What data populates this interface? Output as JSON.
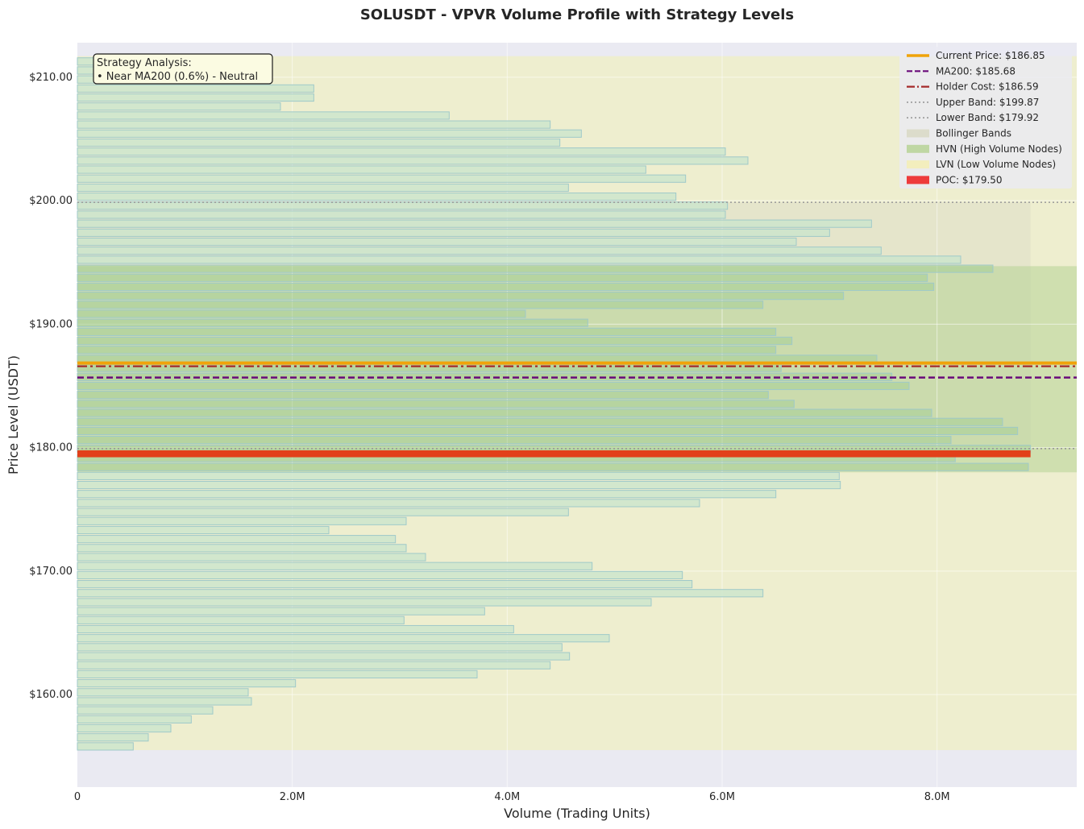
{
  "chart_data": {
    "type": "bar",
    "orientation": "horizontal",
    "title": "SOLUSDT - VPVR Volume Profile with Strategy Levels",
    "xlabel": "Volume (Trading Units)",
    "ylabel": "Price Level (USDT)",
    "xlim": [
      0,
      9300000
    ],
    "ylim": [
      152.5,
      212.8
    ],
    "x_ticks": [
      {
        "value": 0,
        "label": "0"
      },
      {
        "value": 2000000,
        "label": "2.0M"
      },
      {
        "value": 4000000,
        "label": "4.0M"
      },
      {
        "value": 6000000,
        "label": "6.0M"
      },
      {
        "value": 8000000,
        "label": "8.0M"
      }
    ],
    "y_ticks": [
      {
        "value": 160,
        "label": "$160.00"
      },
      {
        "value": 170,
        "label": "$170.00"
      },
      {
        "value": 180,
        "label": "$180.00"
      },
      {
        "value": 190,
        "label": "$190.00"
      },
      {
        "value": 200,
        "label": "$200.00"
      },
      {
        "value": 210,
        "label": "$210.00"
      }
    ],
    "grid": true,
    "legend_position": "top-right",
    "price_min": 155.5,
    "bin_size": 0.73,
    "volumes": [
      520000,
      660000,
      870000,
      1060000,
      1260000,
      1620000,
      1590000,
      2030000,
      3720000,
      4400000,
      4580000,
      4510000,
      4950000,
      4060000,
      3040000,
      3790000,
      5340000,
      6380000,
      5720000,
      5630000,
      4790000,
      3240000,
      3060000,
      2960000,
      2340000,
      3060000,
      4570000,
      5790000,
      6500000,
      7100000,
      7090000,
      8850000,
      8170000,
      8870000,
      8130000,
      8750000,
      8610000,
      7950000,
      6670000,
      6430000,
      7740000,
      7580000,
      6550000,
      7440000,
      6500000,
      6650000,
      6500000,
      4750000,
      4170000,
      6380000,
      7130000,
      7970000,
      7910000,
      8520000,
      8220000,
      7480000,
      6690000,
      7000000,
      7390000,
      6030000,
      6050000,
      5570000,
      4570000,
      5660000,
      5290000,
      6240000,
      6030000,
      4490000,
      4690000,
      4400000,
      3460000,
      1890000,
      2200000,
      2200000,
      1080000,
      1080000,
      1080000
    ],
    "hvn_range": [
      178.0,
      194.7
    ],
    "bollinger_upper": 199.87,
    "bollinger_lower": 179.92,
    "poc": 179.5,
    "poc_volume": 8870000,
    "levels": {
      "current_price": 186.85,
      "ma200": 185.68,
      "holder_cost": 186.59,
      "upper_band": 199.87,
      "lower_band": 179.92
    },
    "colors": {
      "background": "#eaeaf2",
      "lvn_fill": "#eeeecb",
      "bollinger_fill": "#d9d9c6",
      "hvn_fill": "#b7d396",
      "bar_fill": "#cde5cd",
      "bar_stroke": "#9fc9c9",
      "current_price": "#f0a30a",
      "ma200": "#6a0a7a",
      "holder_cost": "#a52a2a",
      "band": "#999999",
      "poc": "#e2401a"
    },
    "legend": [
      {
        "label": "Current Price: $186.85",
        "style": "solid",
        "color": "#f0a30a"
      },
      {
        "label": "MA200: $185.68",
        "style": "dashed",
        "color": "#6a0a7a"
      },
      {
        "label": "Holder Cost: $186.59",
        "style": "dashdot",
        "color": "#a52a2a"
      },
      {
        "label": "Upper Band: $199.87",
        "style": "dotted",
        "color": "#999999"
      },
      {
        "label": "Lower Band: $179.92",
        "style": "dotted",
        "color": "#999999"
      },
      {
        "label": "Bollinger Bands",
        "style": "patch",
        "color": "#d9d9c6"
      },
      {
        "label": "HVN (High Volume Nodes)",
        "style": "patch",
        "color": "#b7d396"
      },
      {
        "label": "LVN (Low Volume Nodes)",
        "style": "patch",
        "color": "#f5eeb5"
      },
      {
        "label": "POC: $179.50",
        "style": "patch",
        "color": "#ee1c1c"
      }
    ],
    "annotation": {
      "title": "Strategy Analysis:",
      "lines": [
        "• Near MA200 (0.6%) - Neutral"
      ]
    }
  }
}
